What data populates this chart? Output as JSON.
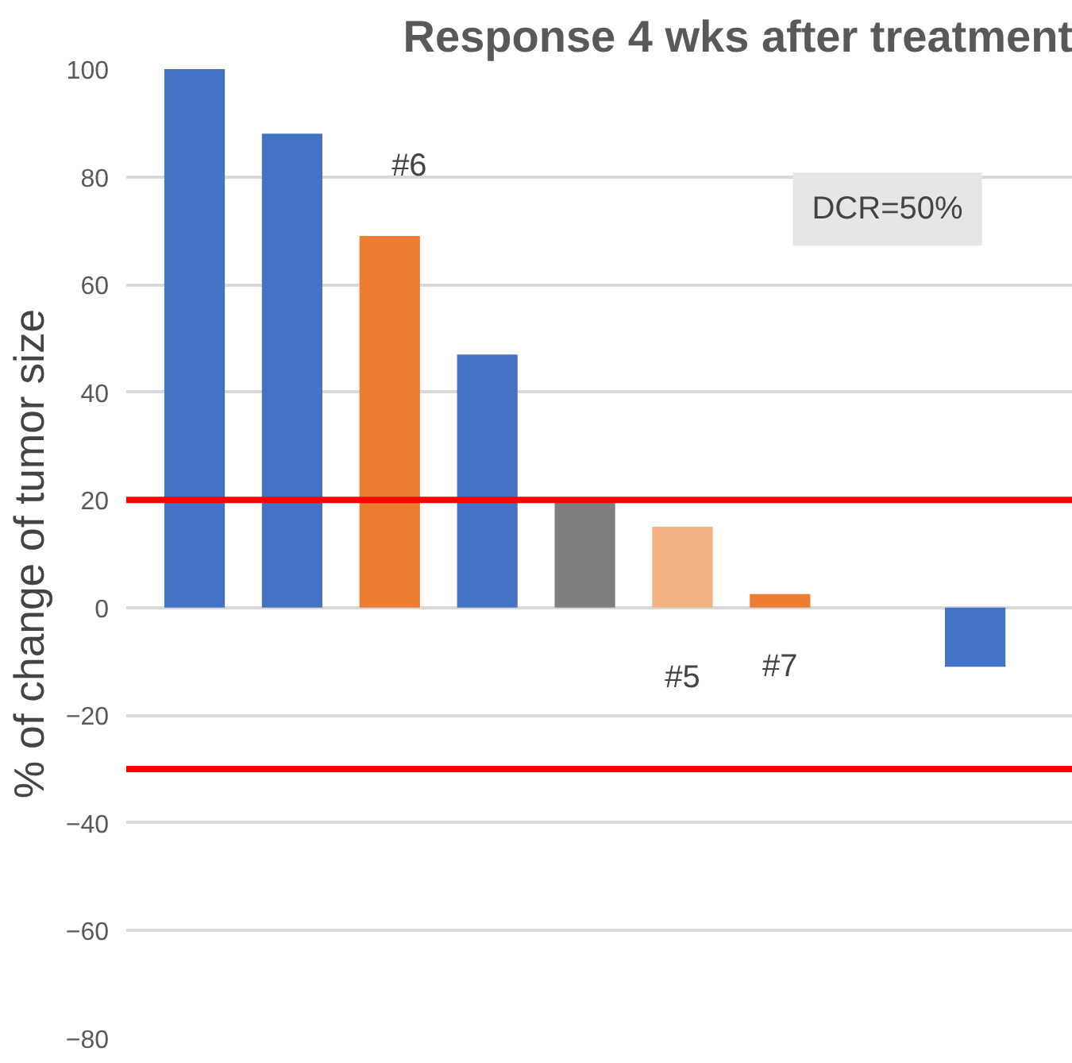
{
  "chart_data": {
    "type": "bar",
    "title": "Response 4 wks after treatment",
    "ylabel": "% of change of tumor size",
    "categories": [
      null,
      null,
      null,
      null,
      null,
      null,
      null,
      null,
      null
    ],
    "values": [
      100,
      88,
      69,
      47,
      20,
      15,
      2.5,
      null,
      -11
    ],
    "colors": [
      "#4472c4",
      "#4472c4",
      "#ed7d31",
      "#4472c4",
      "#7f7f7f",
      "#f4b183",
      "#ed7d31",
      "#4472c4",
      "#4472c4"
    ],
    "ylim": [
      -80,
      100
    ],
    "yticks": [
      -80,
      -60,
      -40,
      -20,
      0,
      20,
      40,
      60,
      80,
      100
    ],
    "grid": "y",
    "ref_lines": [
      {
        "axis": "y",
        "value": 20,
        "color": "#ff0000"
      },
      {
        "axis": "y",
        "value": -30,
        "color": "#ff0000"
      }
    ],
    "annotations": [
      "#6",
      "#5",
      "#7",
      "DCR=50%"
    ]
  }
}
